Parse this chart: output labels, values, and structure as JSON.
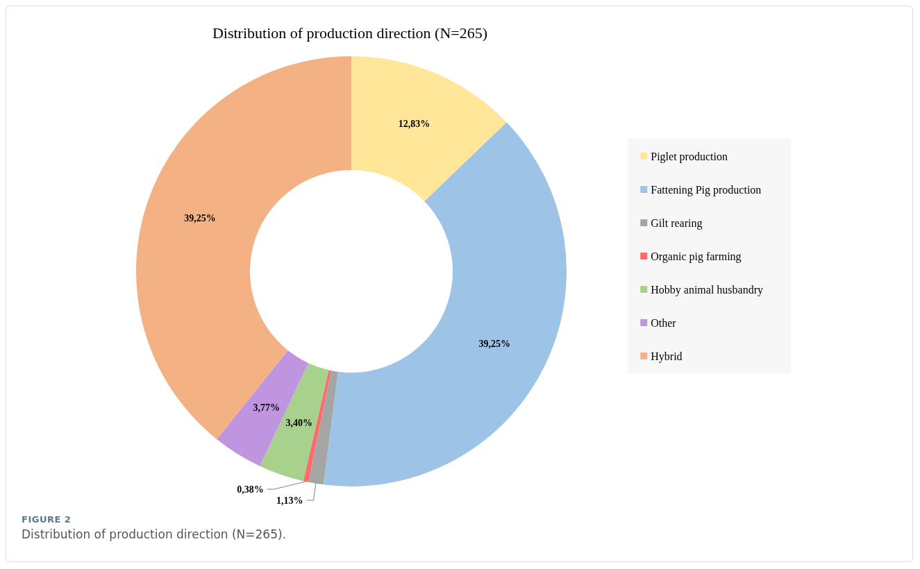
{
  "chart_data": {
    "type": "donut",
    "title": "Distribution of production direction (N=265)",
    "categories": [
      "Piglet production",
      "Fattening Pig production",
      "Gilt rearing",
      "Organic pig farming",
      "Hobby animal husbandry",
      "Other",
      "Hybrid"
    ],
    "values": [
      12.83,
      39.25,
      1.13,
      0.38,
      3.4,
      3.77,
      39.25
    ],
    "value_labels": [
      "12,83%",
      "39,25%",
      "1,13%",
      "0,38%",
      "3,40%",
      "3,77%",
      "39,25%"
    ],
    "colors": [
      "#ffe699",
      "#9dc3e6",
      "#a5a5a5",
      "#ff6b6b",
      "#a9d18e",
      "#bf95df",
      "#f4b183"
    ],
    "legend": "right",
    "annotations": [
      "FIGURE 2",
      "Distribution of production direction (N=265)."
    ]
  }
}
